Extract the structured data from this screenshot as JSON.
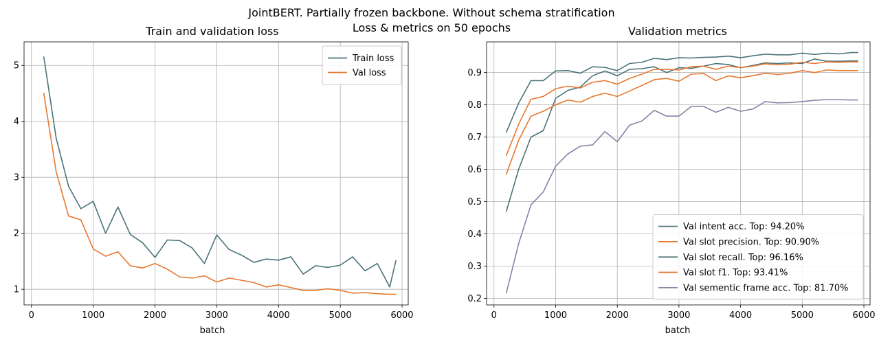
{
  "suptitle": {
    "line1": "JointBERT. Partially frozen backbone. Without schema stratification",
    "line2": "Loss & metrics on 50 epochs"
  },
  "colors": {
    "teal": "#4a7278",
    "orange": "#e8772e",
    "purple": "#8a7fa6"
  },
  "chart_data": [
    {
      "type": "line",
      "title": "Train and validation loss",
      "xlabel": "batch",
      "ylabel": "",
      "xlim": [
        -120,
        6100
      ],
      "ylim": [
        0.72,
        5.42
      ],
      "xticks": [
        0,
        1000,
        2000,
        3000,
        4000,
        5000,
        6000
      ],
      "yticks": [
        1,
        2,
        3,
        4,
        5
      ],
      "grid": true,
      "legend_position": "top-right",
      "x": [
        200,
        400,
        600,
        800,
        1000,
        1200,
        1400,
        1600,
        1800,
        2000,
        2200,
        2400,
        2600,
        2800,
        3000,
        3200,
        3400,
        3600,
        3800,
        4000,
        4200,
        4400,
        4600,
        4800,
        5000,
        5200,
        5400,
        5600,
        5800,
        5900
      ],
      "series": [
        {
          "name": "Train loss",
          "color": "#4a7278",
          "values": [
            5.15,
            3.7,
            2.84,
            2.44,
            2.57,
            2.0,
            2.47,
            1.98,
            1.83,
            1.57,
            1.88,
            1.87,
            1.74,
            1.46,
            1.97,
            1.71,
            1.61,
            1.48,
            1.54,
            1.52,
            1.58,
            1.27,
            1.42,
            1.39,
            1.43,
            1.58,
            1.33,
            1.46,
            1.04,
            1.51
          ]
        },
        {
          "name": "Val loss",
          "color": "#e8772e",
          "values": [
            4.5,
            3.1,
            2.31,
            2.24,
            1.72,
            1.59,
            1.67,
            1.42,
            1.38,
            1.46,
            1.36,
            1.22,
            1.2,
            1.24,
            1.13,
            1.2,
            1.16,
            1.12,
            1.04,
            1.08,
            1.03,
            0.98,
            0.98,
            1.01,
            0.98,
            0.93,
            0.94,
            0.92,
            0.91,
            0.91
          ]
        }
      ]
    },
    {
      "type": "line",
      "title": "Validation metrics",
      "xlabel": "batch",
      "ylabel": "",
      "xlim": [
        -120,
        6100
      ],
      "ylim": [
        0.18,
        0.995
      ],
      "xticks": [
        0,
        1000,
        2000,
        3000,
        4000,
        5000,
        6000
      ],
      "yticks": [
        0.2,
        0.3,
        0.4,
        0.5,
        0.6,
        0.7,
        0.8,
        0.9
      ],
      "grid": true,
      "legend_position": "bottom-right",
      "x": [
        200,
        400,
        600,
        800,
        1000,
        1200,
        1400,
        1600,
        1800,
        2000,
        2200,
        2400,
        2600,
        2800,
        3000,
        3200,
        3400,
        3600,
        3800,
        4000,
        4200,
        4400,
        4600,
        4800,
        5000,
        5200,
        5400,
        5600,
        5800,
        5900
      ],
      "series": [
        {
          "name": "Val intent acc. Top: 94.20%",
          "color": "#4a7278",
          "values": [
            0.47,
            0.6,
            0.7,
            0.72,
            0.82,
            0.845,
            0.855,
            0.89,
            0.905,
            0.89,
            0.91,
            0.912,
            0.918,
            0.9,
            0.915,
            0.913,
            0.92,
            0.928,
            0.925,
            0.915,
            0.922,
            0.93,
            0.928,
            0.93,
            0.928,
            0.942,
            0.935,
            0.935,
            0.936,
            0.936
          ]
        },
        {
          "name": "Val slot precision. Top: 90.90%",
          "color": "#e8772e",
          "values": [
            0.585,
            0.69,
            0.765,
            0.78,
            0.8,
            0.815,
            0.808,
            0.826,
            0.836,
            0.826,
            0.843,
            0.86,
            0.878,
            0.882,
            0.873,
            0.895,
            0.897,
            0.875,
            0.89,
            0.884,
            0.89,
            0.898,
            0.894,
            0.898,
            0.906,
            0.9,
            0.908,
            0.906,
            0.906,
            0.906
          ]
        },
        {
          "name": "Val slot recall. Top: 96.16%",
          "color": "#4a7278",
          "values": [
            0.715,
            0.805,
            0.875,
            0.875,
            0.905,
            0.906,
            0.898,
            0.918,
            0.916,
            0.906,
            0.928,
            0.932,
            0.944,
            0.94,
            0.946,
            0.945,
            0.947,
            0.948,
            0.951,
            0.946,
            0.952,
            0.957,
            0.955,
            0.955,
            0.96,
            0.956,
            0.96,
            0.958,
            0.962,
            0.962
          ]
        },
        {
          "name": "Val slot f1. Top: 93.41%",
          "color": "#e8772e",
          "values": [
            0.643,
            0.74,
            0.817,
            0.826,
            0.85,
            0.858,
            0.852,
            0.87,
            0.875,
            0.864,
            0.882,
            0.895,
            0.91,
            0.91,
            0.908,
            0.918,
            0.92,
            0.91,
            0.92,
            0.915,
            0.92,
            0.927,
            0.924,
            0.926,
            0.932,
            0.928,
            0.933,
            0.932,
            0.933,
            0.933
          ]
        },
        {
          "name": "Val sementic frame acc. Top: 81.70%",
          "color": "#8a7fa6",
          "values": [
            0.217,
            0.37,
            0.49,
            0.53,
            0.61,
            0.648,
            0.672,
            0.676,
            0.717,
            0.686,
            0.737,
            0.75,
            0.783,
            0.765,
            0.765,
            0.795,
            0.795,
            0.777,
            0.792,
            0.78,
            0.787,
            0.81,
            0.806,
            0.807,
            0.81,
            0.814,
            0.816,
            0.816,
            0.815,
            0.815
          ]
        }
      ]
    }
  ]
}
